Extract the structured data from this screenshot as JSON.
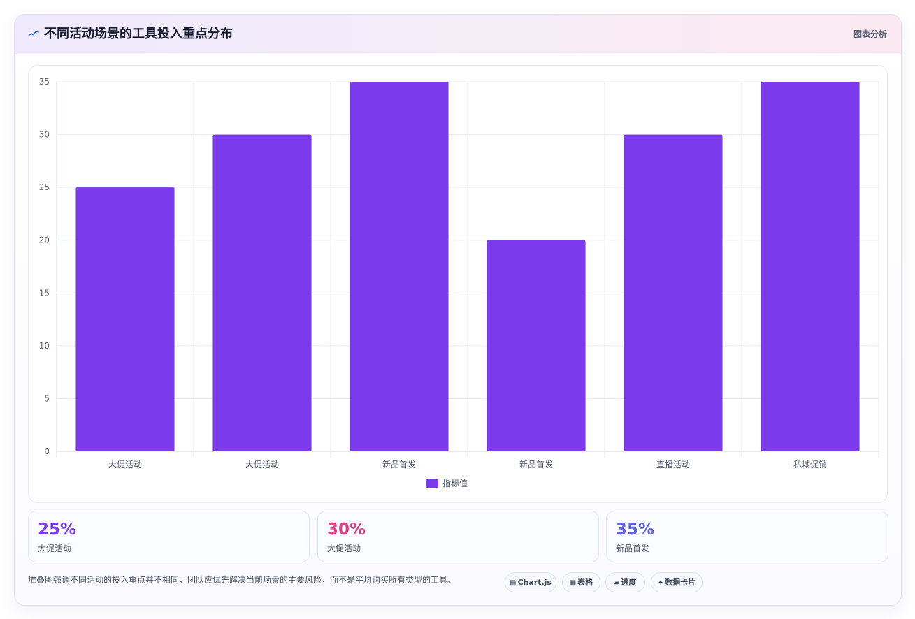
{
  "header": {
    "icon": "chart-line-icon",
    "title": "不同活动场景的工具投入重点分布",
    "badge": "图表分析"
  },
  "chart_data": {
    "type": "bar",
    "categories": [
      "大促活动",
      "大促活动",
      "新品首发",
      "新品首发",
      "直播活动",
      "私域促销"
    ],
    "series": [
      {
        "name": "指标值",
        "values": [
          25,
          30,
          35,
          20,
          30,
          35
        ],
        "color": "#7c3aed"
      }
    ],
    "ylim": [
      0,
      35
    ],
    "yticks": [
      0,
      5,
      10,
      15,
      20,
      25,
      30,
      35
    ],
    "grid": true,
    "legend": "bottom"
  },
  "stats": [
    {
      "value": "25%",
      "label": "大促活动",
      "color": "#7c3aed"
    },
    {
      "value": "30%",
      "label": "大促活动",
      "color": "#e0408a"
    },
    {
      "value": "35%",
      "label": "新品首发",
      "color": "#5b5ee0"
    }
  ],
  "footer": {
    "text": "堆叠图强调不同活动的投入重点并不相同，团队应优先解决当前场景的主要风险，而不是平均购买所有类型的工具。",
    "chips": [
      {
        "icon": "▤",
        "label": "Chart.js"
      },
      {
        "icon": "▦",
        "label": "表格"
      },
      {
        "icon": "▰",
        "label": "进度"
      },
      {
        "icon": "✦",
        "label": "数据卡片"
      }
    ]
  }
}
